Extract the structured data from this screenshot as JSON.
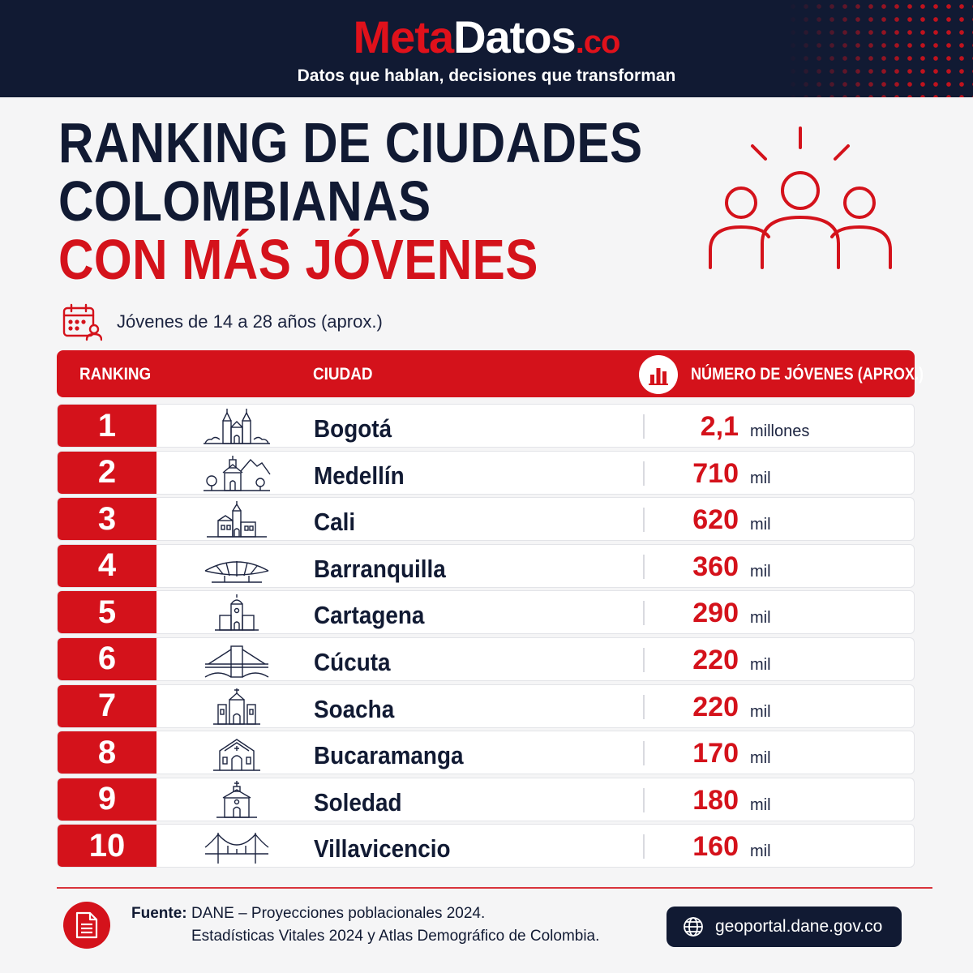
{
  "brand": {
    "name_part1": "Meta",
    "name_part2": "Datos",
    "tld": ".co",
    "tagline": "Datos que hablan, decisiones que transforman"
  },
  "title": {
    "line1": "RANKING DE CIUDADES",
    "line2": "COLOMBIANAS",
    "line3": "CON MÁS JÓVENES"
  },
  "subtitle": "Jóvenes de 14 a 28 años (aprox.)",
  "table": {
    "headers": {
      "ranking": "RANKING",
      "city": "CIUDAD",
      "number": "NÚMERO DE JÓVENES (APROX.)"
    },
    "rows": [
      {
        "rank": "1",
        "icon": "cathedral-icon",
        "city": "Bogotá",
        "value": "2,1",
        "unit": "millones"
      },
      {
        "rank": "2",
        "icon": "church-mountains-icon",
        "city": "Medellín",
        "value": "710",
        "unit": "mil"
      },
      {
        "rank": "3",
        "icon": "church-icon",
        "city": "Cali",
        "value": "620",
        "unit": "mil"
      },
      {
        "rank": "4",
        "icon": "stadium-dome-icon",
        "city": "Barranquilla",
        "value": "360",
        "unit": "mil"
      },
      {
        "rank": "5",
        "icon": "colonial-church-icon",
        "city": "Cartagena",
        "value": "290",
        "unit": "mil"
      },
      {
        "rank": "6",
        "icon": "bridge-icon",
        "city": "Cúcuta",
        "value": "220",
        "unit": "mil"
      },
      {
        "rank": "7",
        "icon": "church-towers-icon",
        "city": "Soacha",
        "value": "220",
        "unit": "mil"
      },
      {
        "rank": "8",
        "icon": "chapel-icon",
        "city": "Bucaramanga",
        "value": "170",
        "unit": "mil"
      },
      {
        "rank": "9",
        "icon": "small-church-icon",
        "city": "Soledad",
        "value": "180",
        "unit": "mil"
      },
      {
        "rank": "10",
        "icon": "suspension-bridge-icon",
        "city": "Villavicencio",
        "value": "160",
        "unit": "mil"
      }
    ]
  },
  "footer": {
    "source_label": "Fuente:",
    "source_line1": "DANE – Proyecciones poblacionales 2024.",
    "source_line2": "Estadísticas Vitales 2024 y Atlas Demográfico de Colombia.",
    "link": "geoportal.dane.gov.co"
  },
  "colors": {
    "accent": "#d4121b",
    "navy": "#111a33",
    "background": "#f5f5f6"
  }
}
